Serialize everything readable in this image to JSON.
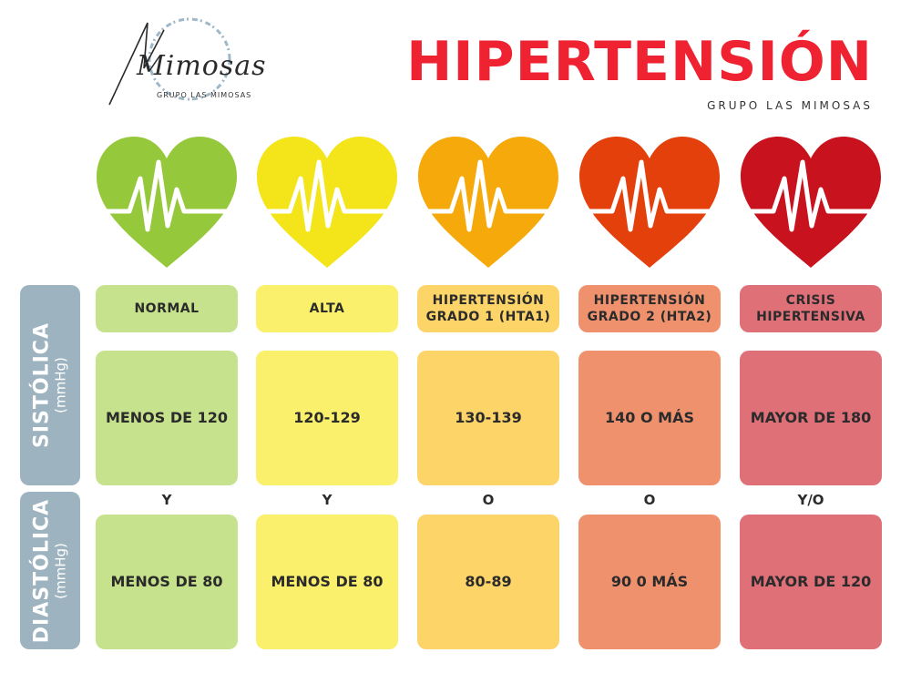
{
  "logo": {
    "script": "Mimosas",
    "subtitle": "GRUPO LAS MIMOSAS"
  },
  "title": "HIPERTENSIÓN",
  "subtitle": "GRUPO LAS MIMOSAS",
  "rows": {
    "systolic": {
      "label": "SISTÓLICA",
      "unit": "(mmHg)"
    },
    "diastolic": {
      "label": "DIASTÓLICA",
      "unit": "(mmHg)"
    }
  },
  "columns": [
    {
      "header": "NORMAL",
      "systolic": "MENOS DE 120",
      "connector": "Y",
      "diastolic": "MENOS DE 80",
      "heart_color": "#96c83c",
      "header_color": "#c6e28c",
      "cell_color": "#c6e28c"
    },
    {
      "header": "ALTA",
      "systolic": "120-129",
      "connector": "Y",
      "diastolic": "MENOS DE 80",
      "heart_color": "#f4e41a",
      "header_color": "#faf06c",
      "cell_color": "#faf06c"
    },
    {
      "header": "HIPERTENSIÓN GRADO 1 (HTA1)",
      "systolic": "130-139",
      "connector": "O",
      "diastolic": "80-89",
      "heart_color": "#f6a90a",
      "header_color": "#fcd468",
      "cell_color": "#fcd468"
    },
    {
      "header": "HIPERTENSIÓN GRADO 2 (HTA2)",
      "systolic": "140 O MÁS",
      "connector": "O",
      "diastolic": "90 0 MÁS",
      "heart_color": "#e4400c",
      "header_color": "#f0916e",
      "cell_color": "#f0916e"
    },
    {
      "header": "CRISIS HIPERTENSIVA",
      "systolic": "MAYOR DE 180",
      "connector": "Y/O",
      "diastolic": "MAYOR DE 120",
      "heart_color": "#c8121e",
      "header_color": "#e07078",
      "cell_color": "#e07078"
    }
  ],
  "colors": {
    "title": "#ee2231",
    "side_label": "#9db4c0",
    "logo_ring": "#9fb8c8"
  },
  "icons": [
    "heartbeat-heart-icon"
  ]
}
